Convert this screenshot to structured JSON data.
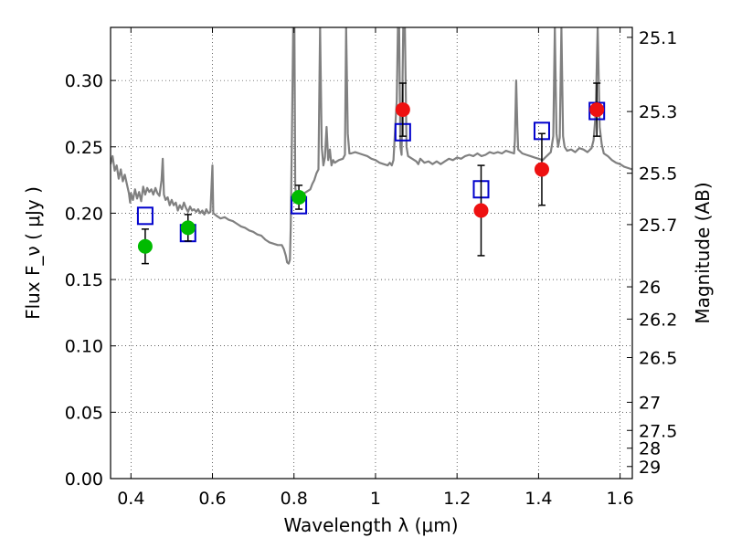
{
  "chart_data": {
    "type": "scatter",
    "xlabel": "Wavelength  λ (μm)",
    "ylabel": "Flux  F_ν  ( μJy )",
    "ylabel_right": "Magnitude (AB)",
    "xlim": [
      0.35,
      1.63
    ],
    "ylim": [
      0.0,
      0.34
    ],
    "grid": true,
    "x_ticks": [
      0.4,
      0.6,
      0.8,
      1.0,
      1.2,
      1.4,
      1.6
    ],
    "x_tick_labels": [
      "0.4",
      "0.6",
      "0.8",
      "1",
      "1.2",
      "1.4",
      "1.6"
    ],
    "y_ticks": [
      0.0,
      0.05,
      0.1,
      0.15,
      0.2,
      0.25,
      0.3
    ],
    "y_tick_labels": [
      "0.00",
      "0.05",
      "0.10",
      "0.15",
      "0.20",
      "0.25",
      "0.30"
    ],
    "magnitude_ticks": [
      {
        "label": "25.1",
        "flux": 0.3325
      },
      {
        "label": "25.3",
        "flux": 0.2766
      },
      {
        "label": "25.5",
        "flux": 0.2301
      },
      {
        "label": "25.7",
        "flux": 0.1914
      },
      {
        "label": "26",
        "flux": 0.1445
      },
      {
        "label": "26.2",
        "flux": 0.1202
      },
      {
        "label": "26.5",
        "flux": 0.0912
      },
      {
        "label": "27",
        "flux": 0.0575
      },
      {
        "label": "27.5",
        "flux": 0.0363
      },
      {
        "label": "28",
        "flux": 0.0229
      },
      {
        "label": "29",
        "flux": 0.0091
      }
    ],
    "series": [
      {
        "marker": "line",
        "color": "#808080",
        "points": [
          [
            0.35,
            0.237
          ],
          [
            0.355,
            0.243
          ],
          [
            0.36,
            0.232
          ],
          [
            0.365,
            0.236
          ],
          [
            0.37,
            0.226
          ],
          [
            0.375,
            0.233
          ],
          [
            0.38,
            0.224
          ],
          [
            0.385,
            0.229
          ],
          [
            0.39,
            0.222
          ],
          [
            0.395,
            0.215
          ],
          [
            0.398,
            0.208
          ],
          [
            0.4,
            0.215
          ],
          [
            0.405,
            0.21
          ],
          [
            0.41,
            0.218
          ],
          [
            0.415,
            0.211
          ],
          [
            0.42,
            0.216
          ],
          [
            0.425,
            0.209
          ],
          [
            0.43,
            0.22
          ],
          [
            0.435,
            0.214
          ],
          [
            0.44,
            0.219
          ],
          [
            0.445,
            0.216
          ],
          [
            0.45,
            0.218
          ],
          [
            0.455,
            0.214
          ],
          [
            0.46,
            0.219
          ],
          [
            0.465,
            0.215
          ],
          [
            0.47,
            0.213
          ],
          [
            0.475,
            0.225
          ],
          [
            0.478,
            0.241
          ],
          [
            0.481,
            0.214
          ],
          [
            0.485,
            0.21
          ],
          [
            0.49,
            0.212
          ],
          [
            0.495,
            0.206
          ],
          [
            0.5,
            0.21
          ],
          [
            0.505,
            0.206
          ],
          [
            0.51,
            0.208
          ],
          [
            0.515,
            0.202
          ],
          [
            0.52,
            0.206
          ],
          [
            0.525,
            0.203
          ],
          [
            0.53,
            0.208
          ],
          [
            0.535,
            0.204
          ],
          [
            0.54,
            0.201
          ],
          [
            0.545,
            0.205
          ],
          [
            0.55,
            0.202
          ],
          [
            0.555,
            0.203
          ],
          [
            0.56,
            0.201
          ],
          [
            0.565,
            0.203
          ],
          [
            0.57,
            0.2
          ],
          [
            0.575,
            0.202
          ],
          [
            0.58,
            0.199
          ],
          [
            0.585,
            0.203
          ],
          [
            0.59,
            0.2
          ],
          [
            0.595,
            0.201
          ],
          [
            0.598,
            0.222
          ],
          [
            0.6,
            0.236
          ],
          [
            0.602,
            0.2
          ],
          [
            0.61,
            0.198
          ],
          [
            0.62,
            0.196
          ],
          [
            0.63,
            0.197
          ],
          [
            0.64,
            0.195
          ],
          [
            0.65,
            0.194
          ],
          [
            0.66,
            0.192
          ],
          [
            0.67,
            0.19
          ],
          [
            0.68,
            0.189
          ],
          [
            0.69,
            0.187
          ],
          [
            0.7,
            0.186
          ],
          [
            0.71,
            0.184
          ],
          [
            0.72,
            0.183
          ],
          [
            0.73,
            0.18
          ],
          [
            0.74,
            0.178
          ],
          [
            0.75,
            0.177
          ],
          [
            0.76,
            0.176
          ],
          [
            0.77,
            0.176
          ],
          [
            0.775,
            0.173
          ],
          [
            0.78,
            0.168
          ],
          [
            0.783,
            0.163
          ],
          [
            0.787,
            0.162
          ],
          [
            0.79,
            0.165
          ],
          [
            0.792,
            0.19
          ],
          [
            0.795,
            0.26
          ],
          [
            0.798,
            0.34
          ],
          [
            0.801,
            0.34
          ],
          [
            0.803,
            0.22
          ],
          [
            0.806,
            0.212
          ],
          [
            0.81,
            0.215
          ],
          [
            0.815,
            0.212
          ],
          [
            0.82,
            0.214
          ],
          [
            0.83,
            0.216
          ],
          [
            0.84,
            0.218
          ],
          [
            0.845,
            0.222
          ],
          [
            0.85,
            0.225
          ],
          [
            0.855,
            0.23
          ],
          [
            0.86,
            0.233
          ],
          [
            0.864,
            0.34
          ],
          [
            0.868,
            0.25
          ],
          [
            0.872,
            0.236
          ],
          [
            0.876,
            0.242
          ],
          [
            0.88,
            0.265
          ],
          [
            0.884,
            0.24
          ],
          [
            0.888,
            0.248
          ],
          [
            0.892,
            0.236
          ],
          [
            0.896,
            0.24
          ],
          [
            0.9,
            0.238
          ],
          [
            0.91,
            0.24
          ],
          [
            0.92,
            0.241
          ],
          [
            0.925,
            0.244
          ],
          [
            0.928,
            0.34
          ],
          [
            0.932,
            0.26
          ],
          [
            0.936,
            0.245
          ],
          [
            0.94,
            0.245
          ],
          [
            0.95,
            0.246
          ],
          [
            0.96,
            0.245
          ],
          [
            0.97,
            0.244
          ],
          [
            0.98,
            0.243
          ],
          [
            0.99,
            0.241
          ],
          [
            1.0,
            0.24
          ],
          [
            1.01,
            0.238
          ],
          [
            1.02,
            0.237
          ],
          [
            1.03,
            0.236
          ],
          [
            1.035,
            0.238
          ],
          [
            1.04,
            0.236
          ],
          [
            1.044,
            0.24
          ],
          [
            1.048,
            0.263
          ],
          [
            1.052,
            0.285
          ],
          [
            1.055,
            0.34
          ],
          [
            1.058,
            0.34
          ],
          [
            1.061,
            0.25
          ],
          [
            1.064,
            0.244
          ],
          [
            1.068,
            0.34
          ],
          [
            1.072,
            0.34
          ],
          [
            1.076,
            0.25
          ],
          [
            1.08,
            0.243
          ],
          [
            1.09,
            0.241
          ],
          [
            1.1,
            0.239
          ],
          [
            1.105,
            0.237
          ],
          [
            1.11,
            0.241
          ],
          [
            1.12,
            0.238
          ],
          [
            1.13,
            0.239
          ],
          [
            1.14,
            0.237
          ],
          [
            1.15,
            0.239
          ],
          [
            1.16,
            0.237
          ],
          [
            1.17,
            0.239
          ],
          [
            1.18,
            0.241
          ],
          [
            1.19,
            0.24
          ],
          [
            1.2,
            0.242
          ],
          [
            1.21,
            0.241
          ],
          [
            1.22,
            0.243
          ],
          [
            1.23,
            0.244
          ],
          [
            1.24,
            0.243
          ],
          [
            1.25,
            0.245
          ],
          [
            1.26,
            0.243
          ],
          [
            1.27,
            0.244
          ],
          [
            1.28,
            0.246
          ],
          [
            1.29,
            0.245
          ],
          [
            1.3,
            0.246
          ],
          [
            1.31,
            0.245
          ],
          [
            1.32,
            0.247
          ],
          [
            1.33,
            0.246
          ],
          [
            1.34,
            0.245
          ],
          [
            1.342,
            0.255
          ],
          [
            1.345,
            0.3
          ],
          [
            1.348,
            0.265
          ],
          [
            1.35,
            0.248
          ],
          [
            1.36,
            0.245
          ],
          [
            1.37,
            0.244
          ],
          [
            1.38,
            0.243
          ],
          [
            1.39,
            0.242
          ],
          [
            1.4,
            0.241
          ],
          [
            1.41,
            0.24
          ],
          [
            1.42,
            0.243
          ],
          [
            1.43,
            0.246
          ],
          [
            1.436,
            0.258
          ],
          [
            1.44,
            0.34
          ],
          [
            1.444,
            0.26
          ],
          [
            1.448,
            0.25
          ],
          [
            1.452,
            0.257
          ],
          [
            1.456,
            0.34
          ],
          [
            1.46,
            0.258
          ],
          [
            1.464,
            0.25
          ],
          [
            1.47,
            0.247
          ],
          [
            1.48,
            0.248
          ],
          [
            1.49,
            0.246
          ],
          [
            1.5,
            0.249
          ],
          [
            1.51,
            0.248
          ],
          [
            1.52,
            0.246
          ],
          [
            1.53,
            0.249
          ],
          [
            1.535,
            0.255
          ],
          [
            1.54,
            0.275
          ],
          [
            1.545,
            0.34
          ],
          [
            1.55,
            0.265
          ],
          [
            1.555,
            0.252
          ],
          [
            1.56,
            0.245
          ],
          [
            1.57,
            0.243
          ],
          [
            1.58,
            0.24
          ],
          [
            1.59,
            0.238
          ],
          [
            1.6,
            0.237
          ],
          [
            1.61,
            0.235
          ],
          [
            1.62,
            0.234
          ],
          [
            1.63,
            0.233
          ]
        ]
      },
      {
        "marker": "square",
        "color": "#0000cc",
        "points": [
          [
            0.435,
            0.198
          ],
          [
            0.54,
            0.185
          ],
          [
            0.812,
            0.206
          ],
          [
            1.067,
            0.261
          ],
          [
            1.259,
            0.218
          ],
          [
            1.408,
            0.262
          ],
          [
            1.543,
            0.277
          ]
        ]
      },
      {
        "marker": "circle",
        "color": "#00bb00",
        "points": [
          [
            0.435,
            0.175
          ],
          [
            0.54,
            0.189
          ],
          [
            0.812,
            0.212
          ]
        ],
        "yerr": [
          0.013,
          0.01,
          0.009
        ]
      },
      {
        "marker": "circle",
        "color": "#ee1111",
        "points": [
          [
            1.067,
            0.278
          ],
          [
            1.259,
            0.202
          ],
          [
            1.408,
            0.233
          ],
          [
            1.543,
            0.278
          ]
        ],
        "yerr": [
          0.02,
          0.034,
          0.027,
          0.02
        ]
      }
    ]
  }
}
